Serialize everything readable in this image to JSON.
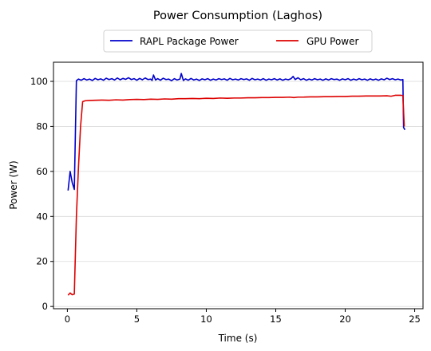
{
  "chart_data": {
    "type": "line",
    "title": "Power Consumption (Laghos)",
    "xlabel": "Time (s)",
    "ylabel": "Power (W)",
    "xlim": [
      -1.0,
      25.6
    ],
    "ylim": [
      -1.0,
      108.5
    ],
    "xticks": [
      0,
      5,
      10,
      15,
      20,
      25
    ],
    "yticks": [
      0,
      20,
      40,
      60,
      80,
      100
    ],
    "grid": "horizontal",
    "legend_position": "top-center",
    "series": [
      {
        "name": "RAPL Package Power",
        "color": "#0000cc",
        "points": [
          [
            0.05,
            51.5
          ],
          [
            0.2,
            60.0
          ],
          [
            0.35,
            55.0
          ],
          [
            0.5,
            52.0
          ],
          [
            0.65,
            100.3
          ],
          [
            0.8,
            101.0
          ],
          [
            1.0,
            100.5
          ],
          [
            1.2,
            101.2
          ],
          [
            1.4,
            100.6
          ],
          [
            1.6,
            101.0
          ],
          [
            1.8,
            100.4
          ],
          [
            2.0,
            101.3
          ],
          [
            2.2,
            100.7
          ],
          [
            2.4,
            101.1
          ],
          [
            2.6,
            100.5
          ],
          [
            2.8,
            101.4
          ],
          [
            3.0,
            100.8
          ],
          [
            3.2,
            101.2
          ],
          [
            3.4,
            100.6
          ],
          [
            3.6,
            101.5
          ],
          [
            3.8,
            100.7
          ],
          [
            4.0,
            101.3
          ],
          [
            4.2,
            100.9
          ],
          [
            4.4,
            101.6
          ],
          [
            4.6,
            100.8
          ],
          [
            4.8,
            101.2
          ],
          [
            5.0,
            100.5
          ],
          [
            5.2,
            101.3
          ],
          [
            5.4,
            100.7
          ],
          [
            5.6,
            101.5
          ],
          [
            5.8,
            100.8
          ],
          [
            6.0,
            101.0
          ],
          [
            6.1,
            100.4
          ],
          [
            6.2,
            102.8
          ],
          [
            6.35,
            100.6
          ],
          [
            6.5,
            101.2
          ],
          [
            6.7,
            100.5
          ],
          [
            6.9,
            101.4
          ],
          [
            7.1,
            100.8
          ],
          [
            7.3,
            101.0
          ],
          [
            7.5,
            100.3
          ],
          [
            7.7,
            101.2
          ],
          [
            7.9,
            100.6
          ],
          [
            8.1,
            101.0
          ],
          [
            8.2,
            103.5
          ],
          [
            8.35,
            100.4
          ],
          [
            8.5,
            101.1
          ],
          [
            8.7,
            100.5
          ],
          [
            8.9,
            101.3
          ],
          [
            9.1,
            100.6
          ],
          [
            9.3,
            101.0
          ],
          [
            9.5,
            100.4
          ],
          [
            9.7,
            101.1
          ],
          [
            9.9,
            100.7
          ],
          [
            10.1,
            101.2
          ],
          [
            10.3,
            100.5
          ],
          [
            10.5,
            101.0
          ],
          [
            10.7,
            100.6
          ],
          [
            10.9,
            101.2
          ],
          [
            11.1,
            100.8
          ],
          [
            11.3,
            101.1
          ],
          [
            11.5,
            100.5
          ],
          [
            11.7,
            101.3
          ],
          [
            11.9,
            100.7
          ],
          [
            12.1,
            101.0
          ],
          [
            12.3,
            100.6
          ],
          [
            12.5,
            101.2
          ],
          [
            12.7,
            100.8
          ],
          [
            12.9,
            101.1
          ],
          [
            13.1,
            100.5
          ],
          [
            13.3,
            101.3
          ],
          [
            13.5,
            100.7
          ],
          [
            13.7,
            101.0
          ],
          [
            13.9,
            100.6
          ],
          [
            14.1,
            101.2
          ],
          [
            14.3,
            100.5
          ],
          [
            14.5,
            101.0
          ],
          [
            14.7,
            100.7
          ],
          [
            14.9,
            101.2
          ],
          [
            15.1,
            100.6
          ],
          [
            15.3,
            101.1
          ],
          [
            15.5,
            100.5
          ],
          [
            15.7,
            101.0
          ],
          [
            15.9,
            100.7
          ],
          [
            16.1,
            101.2
          ],
          [
            16.25,
            102.2
          ],
          [
            16.4,
            100.8
          ],
          [
            16.6,
            101.6
          ],
          [
            16.8,
            100.7
          ],
          [
            17.0,
            101.2
          ],
          [
            17.2,
            100.5
          ],
          [
            17.4,
            101.0
          ],
          [
            17.6,
            100.6
          ],
          [
            17.8,
            101.2
          ],
          [
            18.0,
            100.7
          ],
          [
            18.2,
            101.0
          ],
          [
            18.4,
            100.5
          ],
          [
            18.6,
            101.1
          ],
          [
            18.8,
            100.6
          ],
          [
            19.0,
            101.2
          ],
          [
            19.2,
            100.8
          ],
          [
            19.4,
            101.0
          ],
          [
            19.6,
            100.5
          ],
          [
            19.8,
            101.1
          ],
          [
            20.0,
            100.7
          ],
          [
            20.2,
            101.2
          ],
          [
            20.4,
            100.5
          ],
          [
            20.6,
            101.0
          ],
          [
            20.8,
            100.6
          ],
          [
            21.0,
            101.2
          ],
          [
            21.2,
            100.7
          ],
          [
            21.4,
            101.0
          ],
          [
            21.6,
            100.5
          ],
          [
            21.8,
            101.1
          ],
          [
            22.0,
            100.6
          ],
          [
            22.2,
            101.0
          ],
          [
            22.4,
            100.5
          ],
          [
            22.6,
            101.1
          ],
          [
            22.8,
            100.7
          ],
          [
            23.0,
            101.4
          ],
          [
            23.2,
            100.8
          ],
          [
            23.4,
            101.2
          ],
          [
            23.6,
            100.7
          ],
          [
            23.8,
            101.0
          ],
          [
            24.0,
            100.6
          ],
          [
            24.15,
            100.8
          ],
          [
            24.2,
            79.5
          ],
          [
            24.3,
            78.5
          ]
        ]
      },
      {
        "name": "GPU Power",
        "color": "#dd0000",
        "points": [
          [
            0.05,
            5.0
          ],
          [
            0.2,
            6.0
          ],
          [
            0.35,
            5.2
          ],
          [
            0.5,
            5.5
          ],
          [
            0.65,
            40.0
          ],
          [
            0.8,
            62.0
          ],
          [
            0.95,
            80.0
          ],
          [
            1.1,
            91.0
          ],
          [
            1.3,
            91.4
          ],
          [
            1.6,
            91.5
          ],
          [
            2.0,
            91.6
          ],
          [
            2.5,
            91.7
          ],
          [
            3.0,
            91.6
          ],
          [
            3.5,
            91.8
          ],
          [
            4.0,
            91.7
          ],
          [
            4.5,
            91.9
          ],
          [
            5.0,
            92.0
          ],
          [
            5.5,
            91.9
          ],
          [
            6.0,
            92.1
          ],
          [
            6.5,
            92.0
          ],
          [
            7.0,
            92.2
          ],
          [
            7.5,
            92.1
          ],
          [
            8.0,
            92.3
          ],
          [
            8.5,
            92.3
          ],
          [
            9.0,
            92.4
          ],
          [
            9.5,
            92.3
          ],
          [
            10.0,
            92.5
          ],
          [
            10.5,
            92.4
          ],
          [
            11.0,
            92.6
          ],
          [
            11.5,
            92.5
          ],
          [
            12.0,
            92.6
          ],
          [
            12.5,
            92.6
          ],
          [
            13.0,
            92.7
          ],
          [
            13.5,
            92.7
          ],
          [
            14.0,
            92.8
          ],
          [
            14.5,
            92.8
          ],
          [
            15.0,
            92.9
          ],
          [
            15.5,
            92.9
          ],
          [
            16.0,
            93.0
          ],
          [
            16.3,
            92.8
          ],
          [
            16.6,
            93.0
          ],
          [
            17.0,
            93.0
          ],
          [
            17.5,
            93.1
          ],
          [
            18.0,
            93.1
          ],
          [
            18.5,
            93.2
          ],
          [
            19.0,
            93.2
          ],
          [
            19.5,
            93.3
          ],
          [
            20.0,
            93.3
          ],
          [
            20.5,
            93.4
          ],
          [
            21.0,
            93.4
          ],
          [
            21.5,
            93.5
          ],
          [
            22.0,
            93.5
          ],
          [
            22.5,
            93.5
          ],
          [
            23.0,
            93.6
          ],
          [
            23.3,
            93.4
          ],
          [
            23.6,
            93.8
          ],
          [
            24.0,
            93.8
          ],
          [
            24.15,
            93.7
          ],
          [
            24.25,
            80.0
          ]
        ]
      }
    ]
  }
}
